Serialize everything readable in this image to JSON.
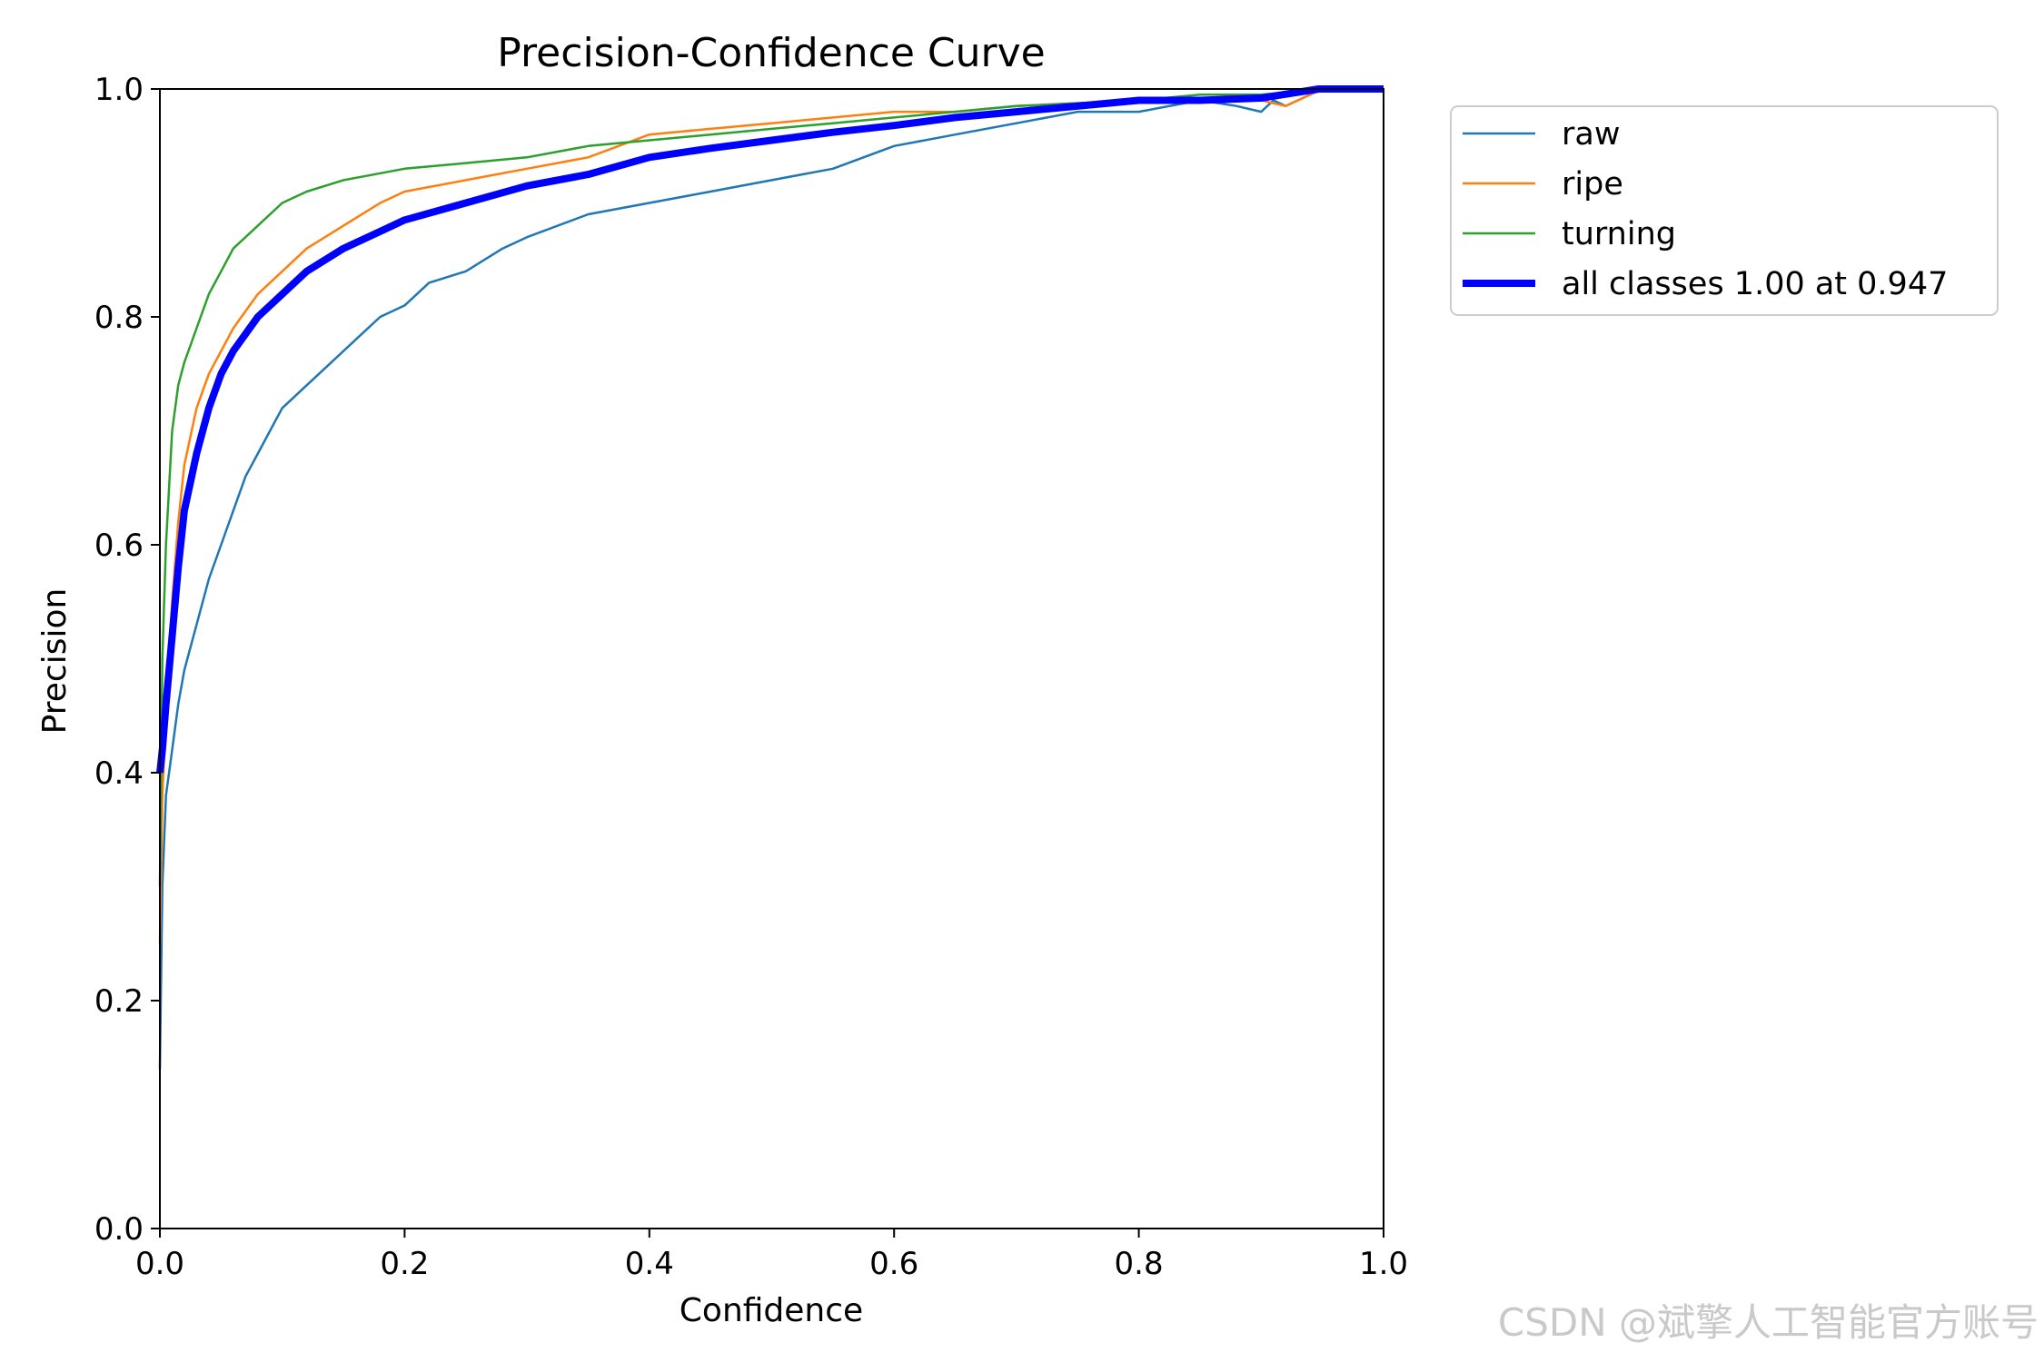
{
  "chart_data": {
    "type": "line",
    "title": "Precision-Confidence Curve",
    "xlabel": "Confidence",
    "ylabel": "Precision",
    "xlim": [
      0.0,
      1.0
    ],
    "ylim": [
      0.0,
      1.0
    ],
    "xticks": [
      "0.0",
      "0.2",
      "0.4",
      "0.6",
      "0.8",
      "1.0"
    ],
    "yticks": [
      "0.0",
      "0.2",
      "0.4",
      "0.6",
      "0.8",
      "1.0"
    ],
    "grid": false,
    "legend_position": "outside-upper-right",
    "series": [
      {
        "name": "raw",
        "color": "#1f77b4",
        "points": [
          [
            0.0,
            0.14
          ],
          [
            0.002,
            0.3
          ],
          [
            0.005,
            0.38
          ],
          [
            0.01,
            0.42
          ],
          [
            0.015,
            0.46
          ],
          [
            0.02,
            0.49
          ],
          [
            0.03,
            0.53
          ],
          [
            0.04,
            0.57
          ],
          [
            0.05,
            0.6
          ],
          [
            0.06,
            0.63
          ],
          [
            0.07,
            0.66
          ],
          [
            0.08,
            0.68
          ],
          [
            0.09,
            0.7
          ],
          [
            0.1,
            0.72
          ],
          [
            0.12,
            0.74
          ],
          [
            0.14,
            0.76
          ],
          [
            0.16,
            0.78
          ],
          [
            0.18,
            0.8
          ],
          [
            0.2,
            0.81
          ],
          [
            0.22,
            0.83
          ],
          [
            0.25,
            0.84
          ],
          [
            0.28,
            0.86
          ],
          [
            0.3,
            0.87
          ],
          [
            0.35,
            0.89
          ],
          [
            0.4,
            0.9
          ],
          [
            0.45,
            0.91
          ],
          [
            0.5,
            0.92
          ],
          [
            0.55,
            0.93
          ],
          [
            0.6,
            0.95
          ],
          [
            0.65,
            0.96
          ],
          [
            0.7,
            0.97
          ],
          [
            0.75,
            0.98
          ],
          [
            0.8,
            0.98
          ],
          [
            0.85,
            0.99
          ],
          [
            0.88,
            0.985
          ],
          [
            0.9,
            0.98
          ],
          [
            0.91,
            0.99
          ],
          [
            0.92,
            0.985
          ],
          [
            0.95,
            1.0
          ],
          [
            1.0,
            1.0
          ]
        ]
      },
      {
        "name": "ripe",
        "color": "#ff7f0e",
        "points": [
          [
            0.0,
            0.25
          ],
          [
            0.002,
            0.38
          ],
          [
            0.005,
            0.45
          ],
          [
            0.01,
            0.55
          ],
          [
            0.015,
            0.62
          ],
          [
            0.02,
            0.67
          ],
          [
            0.03,
            0.72
          ],
          [
            0.04,
            0.75
          ],
          [
            0.05,
            0.77
          ],
          [
            0.06,
            0.79
          ],
          [
            0.08,
            0.82
          ],
          [
            0.1,
            0.84
          ],
          [
            0.12,
            0.86
          ],
          [
            0.15,
            0.88
          ],
          [
            0.18,
            0.9
          ],
          [
            0.2,
            0.91
          ],
          [
            0.25,
            0.92
          ],
          [
            0.3,
            0.93
          ],
          [
            0.35,
            0.94
          ],
          [
            0.4,
            0.96
          ],
          [
            0.45,
            0.965
          ],
          [
            0.5,
            0.97
          ],
          [
            0.55,
            0.975
          ],
          [
            0.6,
            0.98
          ],
          [
            0.65,
            0.98
          ],
          [
            0.7,
            0.985
          ],
          [
            0.8,
            0.99
          ],
          [
            0.85,
            0.99
          ],
          [
            0.9,
            0.99
          ],
          [
            0.92,
            0.985
          ],
          [
            0.95,
            1.0
          ],
          [
            1.0,
            1.0
          ]
        ]
      },
      {
        "name": "turning",
        "color": "#2ca02c",
        "points": [
          [
            0.0,
            0.3
          ],
          [
            0.002,
            0.5
          ],
          [
            0.005,
            0.6
          ],
          [
            0.01,
            0.7
          ],
          [
            0.015,
            0.74
          ],
          [
            0.02,
            0.76
          ],
          [
            0.03,
            0.79
          ],
          [
            0.04,
            0.82
          ],
          [
            0.05,
            0.84
          ],
          [
            0.06,
            0.86
          ],
          [
            0.08,
            0.88
          ],
          [
            0.1,
            0.9
          ],
          [
            0.12,
            0.91
          ],
          [
            0.15,
            0.92
          ],
          [
            0.2,
            0.93
          ],
          [
            0.25,
            0.935
          ],
          [
            0.3,
            0.94
          ],
          [
            0.35,
            0.95
          ],
          [
            0.4,
            0.955
          ],
          [
            0.45,
            0.96
          ],
          [
            0.5,
            0.965
          ],
          [
            0.55,
            0.97
          ],
          [
            0.6,
            0.975
          ],
          [
            0.7,
            0.985
          ],
          [
            0.8,
            0.99
          ],
          [
            0.85,
            0.995
          ],
          [
            0.9,
            0.995
          ],
          [
            0.95,
            1.0
          ],
          [
            1.0,
            1.0
          ]
        ]
      },
      {
        "name": "all classes 1.00 at 0.947",
        "color": "#0000ff",
        "points": [
          [
            0.0,
            0.4
          ],
          [
            0.002,
            0.42
          ],
          [
            0.005,
            0.46
          ],
          [
            0.01,
            0.52
          ],
          [
            0.015,
            0.58
          ],
          [
            0.02,
            0.63
          ],
          [
            0.03,
            0.68
          ],
          [
            0.04,
            0.72
          ],
          [
            0.05,
            0.75
          ],
          [
            0.06,
            0.77
          ],
          [
            0.08,
            0.8
          ],
          [
            0.1,
            0.82
          ],
          [
            0.12,
            0.84
          ],
          [
            0.15,
            0.86
          ],
          [
            0.18,
            0.875
          ],
          [
            0.2,
            0.885
          ],
          [
            0.25,
            0.9
          ],
          [
            0.3,
            0.915
          ],
          [
            0.35,
            0.925
          ],
          [
            0.4,
            0.94
          ],
          [
            0.45,
            0.948
          ],
          [
            0.5,
            0.955
          ],
          [
            0.55,
            0.962
          ],
          [
            0.6,
            0.968
          ],
          [
            0.65,
            0.975
          ],
          [
            0.7,
            0.98
          ],
          [
            0.8,
            0.99
          ],
          [
            0.85,
            0.99
          ],
          [
            0.9,
            0.992
          ],
          [
            0.947,
            1.0
          ],
          [
            1.0,
            1.0
          ]
        ]
      }
    ]
  },
  "watermark": "CSDN @斌擎人工智能官方账号"
}
